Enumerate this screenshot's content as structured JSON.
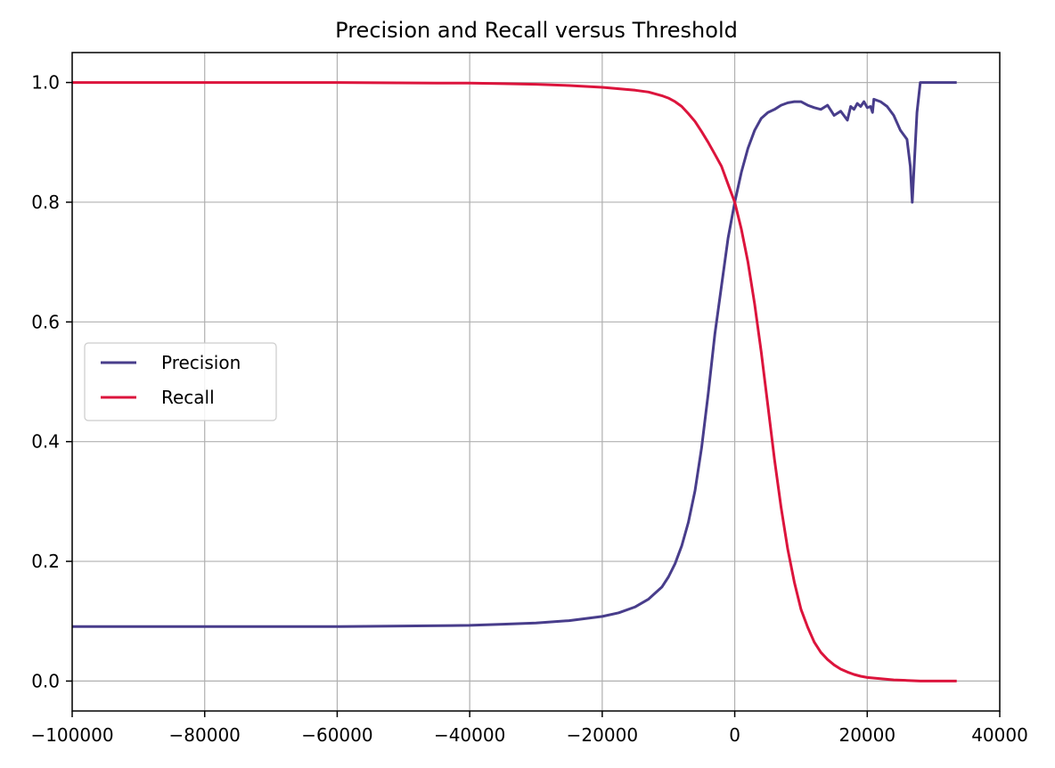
{
  "chart_data": {
    "type": "line",
    "title": "Precision and Recall versus Threshold",
    "xlabel": "",
    "ylabel": "",
    "xlim": [
      -100000,
      40000
    ],
    "ylim": [
      -0.05,
      1.05
    ],
    "x_ticks": [
      -100000,
      -80000,
      -60000,
      -40000,
      -20000,
      0,
      20000,
      40000
    ],
    "x_tick_labels": [
      "−100000",
      "−80000",
      "−60000",
      "−40000",
      "−20000",
      "0",
      "20000",
      "40000"
    ],
    "y_ticks": [
      0.0,
      0.2,
      0.4,
      0.6,
      0.8,
      1.0
    ],
    "y_tick_labels": [
      "0.0",
      "0.2",
      "0.4",
      "0.6",
      "0.8",
      "1.0"
    ],
    "grid": true,
    "legend_position": "center-left",
    "series": [
      {
        "name": "Precision",
        "color": "#483d8b",
        "x": [
          -100000,
          -80000,
          -60000,
          -50000,
          -40000,
          -35000,
          -30000,
          -25000,
          -20000,
          -17500,
          -15000,
          -13000,
          -11000,
          -10000,
          -9000,
          -8000,
          -7000,
          -6000,
          -5000,
          -4000,
          -3000,
          -2000,
          -1000,
          0,
          1000,
          2000,
          3000,
          4000,
          5000,
          6000,
          7000,
          8000,
          9000,
          10000,
          11000,
          12000,
          13000,
          14000,
          15000,
          16000,
          17000,
          17500,
          18000,
          18500,
          19000,
          19500,
          20000,
          20500,
          20800,
          21000,
          22000,
          23000,
          24000,
          25000,
          26000,
          26500,
          26800,
          27500,
          28000,
          30000,
          33500
        ],
        "y": [
          0.091,
          0.091,
          0.091,
          0.092,
          0.093,
          0.095,
          0.097,
          0.101,
          0.108,
          0.114,
          0.124,
          0.137,
          0.157,
          0.174,
          0.196,
          0.226,
          0.265,
          0.318,
          0.39,
          0.48,
          0.58,
          0.66,
          0.74,
          0.8,
          0.85,
          0.89,
          0.92,
          0.94,
          0.95,
          0.955,
          0.962,
          0.966,
          0.968,
          0.968,
          0.962,
          0.958,
          0.955,
          0.962,
          0.945,
          0.952,
          0.937,
          0.96,
          0.955,
          0.965,
          0.96,
          0.968,
          0.958,
          0.96,
          0.95,
          0.972,
          0.968,
          0.96,
          0.945,
          0.92,
          0.905,
          0.86,
          0.8,
          0.95,
          1.0,
          1.0,
          1.0
        ]
      },
      {
        "name": "Recall",
        "color": "#dc143c",
        "x": [
          -100000,
          -80000,
          -60000,
          -45000,
          -40000,
          -35000,
          -30000,
          -25000,
          -20000,
          -15000,
          -13000,
          -11000,
          -10000,
          -9000,
          -8000,
          -7000,
          -6000,
          -5000,
          -4000,
          -3000,
          -2000,
          -1000,
          0,
          1000,
          2000,
          3000,
          4000,
          5000,
          6000,
          7000,
          8000,
          9000,
          10000,
          11000,
          12000,
          13000,
          14000,
          15000,
          16000,
          17000,
          18000,
          19000,
          20000,
          22000,
          24000,
          26000,
          28000,
          30000,
          33500
        ],
        "y": [
          1.0,
          1.0,
          1.0,
          0.999,
          0.999,
          0.998,
          0.997,
          0.995,
          0.992,
          0.987,
          0.984,
          0.978,
          0.974,
          0.968,
          0.96,
          0.948,
          0.935,
          0.918,
          0.9,
          0.88,
          0.86,
          0.83,
          0.8,
          0.755,
          0.7,
          0.63,
          0.55,
          0.46,
          0.37,
          0.29,
          0.22,
          0.165,
          0.12,
          0.09,
          0.065,
          0.048,
          0.036,
          0.027,
          0.02,
          0.015,
          0.011,
          0.008,
          0.006,
          0.004,
          0.002,
          0.001,
          0.0,
          0.0,
          0.0
        ]
      }
    ]
  }
}
